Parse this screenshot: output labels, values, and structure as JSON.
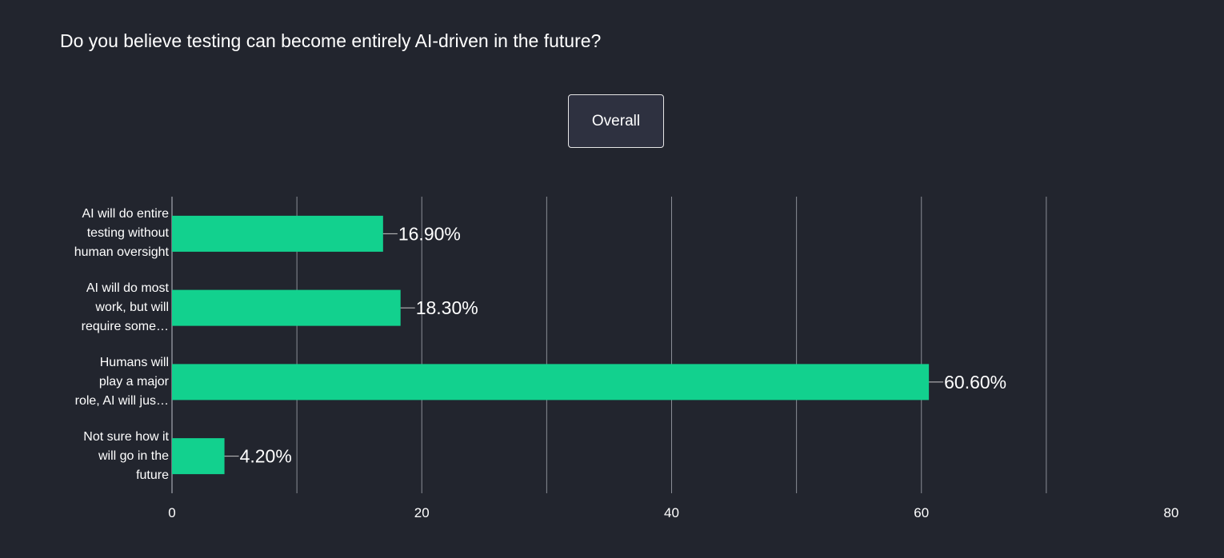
{
  "question": "Do you believe testing can become entirely AI-driven in the future?",
  "filter": {
    "selected_label": "Overall"
  },
  "colors": {
    "background": "#22252e",
    "bar": "#12d18e",
    "grid": "#8a8d96",
    "text": "#ffffff"
  },
  "chart_data": {
    "type": "bar",
    "orientation": "horizontal",
    "title": "Do you believe testing can become entirely AI-driven in the future?",
    "categories": [
      "AI will do entire testing without human oversight",
      "AI will do most work, but will require some…",
      "Humans will play a major role, AI will jus…",
      "Not sure how it will go in the future"
    ],
    "category_lines": [
      [
        "AI will do entire",
        "testing without",
        "human oversight"
      ],
      [
        "AI will do most",
        "work, but will",
        "require some…"
      ],
      [
        "Humans will",
        "play a major",
        "role, AI will jus…"
      ],
      [
        "Not sure how it",
        "will go in the",
        "future"
      ]
    ],
    "values": [
      16.9,
      18.3,
      60.6,
      4.2
    ],
    "data_labels": [
      "16.90%",
      "18.30%",
      "60.60%",
      "4.20%"
    ],
    "xlim": [
      0,
      80
    ],
    "x_ticks": [
      0,
      20,
      40,
      60,
      80
    ],
    "x_tick_labels": [
      "0",
      "20",
      "40",
      "60",
      "80"
    ],
    "grid_step": 10,
    "xlabel": "",
    "ylabel": "",
    "grid": true,
    "legend": "none"
  }
}
